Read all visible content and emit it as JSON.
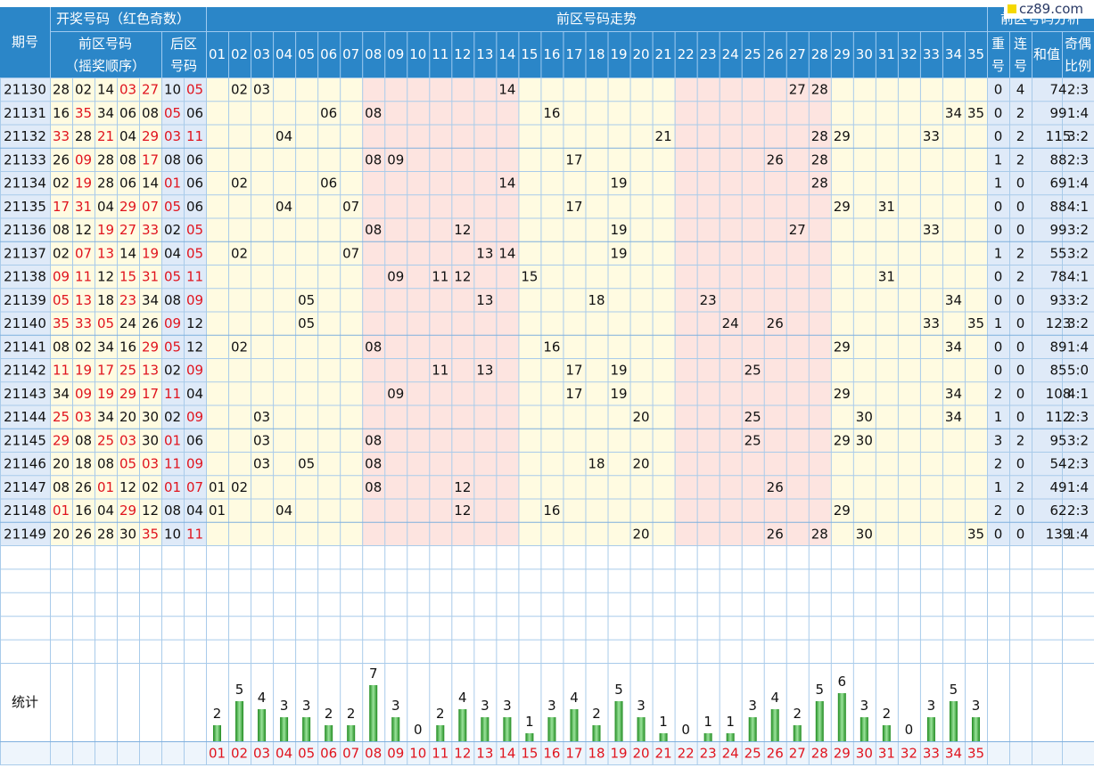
{
  "header": {
    "period": "期号",
    "draw": "开奖号码（红色奇数）",
    "trend": "前区号码走势",
    "analysis": "前区号码分析",
    "front": [
      "前区号码",
      "（摇奖顺序）"
    ],
    "back": [
      "后区",
      "号码"
    ],
    "repeat": [
      "重",
      "号"
    ],
    "consec": [
      "连",
      "号"
    ],
    "sum": "和值",
    "ratio": [
      "奇偶",
      "比例"
    ]
  },
  "logo": "cz89.com",
  "numbers": [
    "01",
    "02",
    "03",
    "04",
    "05",
    "06",
    "07",
    "08",
    "09",
    "10",
    "11",
    "12",
    "13",
    "14",
    "15",
    "16",
    "17",
    "18",
    "19",
    "20",
    "21",
    "22",
    "23",
    "24",
    "25",
    "26",
    "27",
    "28",
    "29",
    "30",
    "31",
    "32",
    "33",
    "34",
    "35"
  ],
  "rows": [
    {
      "period": "21130",
      "front": [
        "28",
        "02",
        "14",
        "03",
        "27"
      ],
      "back": [
        "10",
        "05"
      ],
      "repeat": 0,
      "consec": 4,
      "sum": 74,
      "ratio": "2:3"
    },
    {
      "period": "21131",
      "front": [
        "16",
        "35",
        "34",
        "06",
        "08"
      ],
      "back": [
        "05",
        "06"
      ],
      "repeat": 0,
      "consec": 2,
      "sum": 99,
      "ratio": "1:4"
    },
    {
      "period": "21132",
      "front": [
        "33",
        "28",
        "21",
        "04",
        "29"
      ],
      "back": [
        "03",
        "11"
      ],
      "repeat": 0,
      "consec": 2,
      "sum": 115,
      "ratio": "3:2"
    },
    {
      "period": "21133",
      "front": [
        "26",
        "09",
        "28",
        "08",
        "17"
      ],
      "back": [
        "08",
        "06"
      ],
      "repeat": 1,
      "consec": 2,
      "sum": 88,
      "ratio": "2:3"
    },
    {
      "period": "21134",
      "front": [
        "02",
        "19",
        "28",
        "06",
        "14"
      ],
      "back": [
        "01",
        "06"
      ],
      "repeat": 1,
      "consec": 0,
      "sum": 69,
      "ratio": "1:4"
    },
    {
      "period": "21135",
      "front": [
        "17",
        "31",
        "04",
        "29",
        "07"
      ],
      "back": [
        "05",
        "06"
      ],
      "repeat": 0,
      "consec": 0,
      "sum": 88,
      "ratio": "4:1"
    },
    {
      "period": "21136",
      "front": [
        "08",
        "12",
        "19",
        "27",
        "33"
      ],
      "back": [
        "02",
        "05"
      ],
      "repeat": 0,
      "consec": 0,
      "sum": 99,
      "ratio": "3:2"
    },
    {
      "period": "21137",
      "front": [
        "02",
        "07",
        "13",
        "14",
        "19"
      ],
      "back": [
        "04",
        "05"
      ],
      "repeat": 1,
      "consec": 2,
      "sum": 55,
      "ratio": "3:2"
    },
    {
      "period": "21138",
      "front": [
        "09",
        "11",
        "12",
        "15",
        "31"
      ],
      "back": [
        "05",
        "11"
      ],
      "repeat": 0,
      "consec": 2,
      "sum": 78,
      "ratio": "4:1"
    },
    {
      "period": "21139",
      "front": [
        "05",
        "13",
        "18",
        "23",
        "34"
      ],
      "back": [
        "08",
        "09"
      ],
      "repeat": 0,
      "consec": 0,
      "sum": 93,
      "ratio": "3:2"
    },
    {
      "period": "21140",
      "front": [
        "35",
        "33",
        "05",
        "24",
        "26"
      ],
      "back": [
        "09",
        "12"
      ],
      "repeat": 1,
      "consec": 0,
      "sum": 123,
      "ratio": "3:2"
    },
    {
      "period": "21141",
      "front": [
        "08",
        "02",
        "34",
        "16",
        "29"
      ],
      "back": [
        "05",
        "12"
      ],
      "repeat": 0,
      "consec": 0,
      "sum": 89,
      "ratio": "1:4"
    },
    {
      "period": "21142",
      "front": [
        "11",
        "19",
        "17",
        "25",
        "13"
      ],
      "back": [
        "02",
        "09"
      ],
      "repeat": 0,
      "consec": 0,
      "sum": 85,
      "ratio": "5:0"
    },
    {
      "period": "21143",
      "front": [
        "34",
        "09",
        "19",
        "29",
        "17"
      ],
      "back": [
        "11",
        "04"
      ],
      "repeat": 2,
      "consec": 0,
      "sum": 108,
      "ratio": "4:1"
    },
    {
      "period": "21144",
      "front": [
        "25",
        "03",
        "34",
        "20",
        "30"
      ],
      "back": [
        "02",
        "09"
      ],
      "repeat": 1,
      "consec": 0,
      "sum": 112,
      "ratio": "2:3"
    },
    {
      "period": "21145",
      "front": [
        "29",
        "08",
        "25",
        "03",
        "30"
      ],
      "back": [
        "01",
        "06"
      ],
      "repeat": 3,
      "consec": 2,
      "sum": 95,
      "ratio": "3:2"
    },
    {
      "period": "21146",
      "front": [
        "20",
        "18",
        "08",
        "05",
        "03"
      ],
      "back": [
        "11",
        "09"
      ],
      "repeat": 2,
      "consec": 0,
      "sum": 54,
      "ratio": "2:3"
    },
    {
      "period": "21147",
      "front": [
        "08",
        "26",
        "01",
        "12",
        "02"
      ],
      "back": [
        "01",
        "07"
      ],
      "repeat": 1,
      "consec": 2,
      "sum": 49,
      "ratio": "1:4"
    },
    {
      "period": "21148",
      "front": [
        "01",
        "16",
        "04",
        "29",
        "12"
      ],
      "back": [
        "08",
        "04"
      ],
      "repeat": 2,
      "consec": 0,
      "sum": 62,
      "ratio": "2:3"
    },
    {
      "period": "21149",
      "front": [
        "20",
        "26",
        "28",
        "30",
        "35"
      ],
      "back": [
        "10",
        "11"
      ],
      "repeat": 0,
      "consec": 0,
      "sum": 139,
      "ratio": "1:4"
    }
  ],
  "stats": {
    "label": "统计",
    "counts": [
      2,
      5,
      4,
      3,
      3,
      2,
      2,
      7,
      3,
      0,
      2,
      4,
      3,
      3,
      1,
      3,
      4,
      2,
      5,
      3,
      1,
      0,
      1,
      1,
      3,
      4,
      2,
      5,
      6,
      3,
      2,
      0,
      3,
      5,
      3
    ]
  }
}
